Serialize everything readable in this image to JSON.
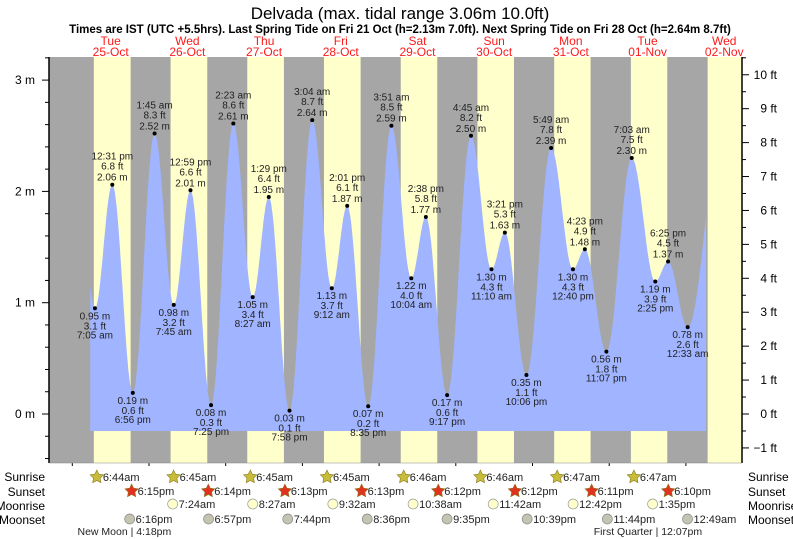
{
  "chart_data": {
    "type": "area",
    "title": "Delvada (max. tidal range 3.06m 10.0ft)",
    "subtitle": "Times are IST (UTC +5.5hrs). Last Spring Tide on Fri 21 Oct (h=2.13m 7.0ft). Next Spring Tide on Fri 28 Oct (h=2.64m 8.7ft)",
    "days": [
      {
        "dow": "Tue",
        "date": "25-Oct"
      },
      {
        "dow": "Wed",
        "date": "26-Oct"
      },
      {
        "dow": "Thu",
        "date": "27-Oct"
      },
      {
        "dow": "Fri",
        "date": "28-Oct"
      },
      {
        "dow": "Sat",
        "date": "29-Oct"
      },
      {
        "dow": "Sun",
        "date": "30-Oct"
      },
      {
        "dow": "Mon",
        "date": "31-Oct"
      },
      {
        "dow": "Tue",
        "date": "01-Nov"
      },
      {
        "dow": "Wed",
        "date": "02-Nov"
      }
    ],
    "ylim_m": [
      -0.45,
      3.2
    ],
    "left_axis": {
      "unit": "m",
      "ticks": [
        "3 m",
        "2 m",
        "1 m",
        "0 m"
      ],
      "values": [
        3,
        2,
        1,
        0
      ]
    },
    "right_axis": {
      "unit": "ft",
      "ticks": [
        "10 ft",
        "9 ft",
        "8 ft",
        "7 ft",
        "6 ft",
        "5 ft",
        "4 ft",
        "3 ft",
        "2 ft",
        "1 ft",
        "0 ft",
        "−1 ft"
      ],
      "values": [
        10,
        9,
        8,
        7,
        6,
        5,
        4,
        3,
        2,
        1,
        0,
        -1
      ]
    },
    "series_start": {
      "day": 0,
      "hour": 5.6,
      "m": 1.15
    },
    "series_end": {
      "day": 7,
      "hour": 6.3,
      "m": 1.78
    },
    "tides": [
      {
        "type": "low",
        "day": 0,
        "hour": 7.083,
        "time": "7:05 am",
        "m": "0.95 m",
        "ft": "3.1 ft",
        "value": 0.95
      },
      {
        "type": "high",
        "day": 0,
        "hour": 12.517,
        "time": "12:31 pm",
        "m": "2.06 m",
        "ft": "6.8 ft",
        "value": 2.06
      },
      {
        "type": "low",
        "day": 0,
        "hour": 18.933,
        "time": "6:56 pm",
        "m": "0.19 m",
        "ft": "0.6 ft",
        "value": 0.19
      },
      {
        "type": "high",
        "day": 1,
        "hour": 1.75,
        "time": "1:45 am",
        "m": "2.52 m",
        "ft": "8.3 ft",
        "value": 2.52
      },
      {
        "type": "low",
        "day": 1,
        "hour": 7.75,
        "time": "7:45 am",
        "m": "0.98 m",
        "ft": "3.2 ft",
        "value": 0.98
      },
      {
        "type": "high",
        "day": 1,
        "hour": 12.983,
        "time": "12:59 pm",
        "m": "2.01 m",
        "ft": "6.6 ft",
        "value": 2.01
      },
      {
        "type": "low",
        "day": 1,
        "hour": 19.417,
        "time": "7:25 pm",
        "m": "0.08 m",
        "ft": "0.3 ft",
        "value": 0.08
      },
      {
        "type": "high",
        "day": 2,
        "hour": 2.383,
        "time": "2:23 am",
        "m": "2.61 m",
        "ft": "8.6 ft",
        "value": 2.61
      },
      {
        "type": "low",
        "day": 2,
        "hour": 8.45,
        "time": "8:27 am",
        "m": "1.05 m",
        "ft": "3.4 ft",
        "value": 1.05
      },
      {
        "type": "high",
        "day": 2,
        "hour": 13.483,
        "time": "1:29 pm",
        "m": "1.95 m",
        "ft": "6.4 ft",
        "value": 1.95
      },
      {
        "type": "low",
        "day": 2,
        "hour": 19.967,
        "time": "7:58 pm",
        "m": "0.03 m",
        "ft": "0.1 ft",
        "value": 0.03
      },
      {
        "type": "high",
        "day": 3,
        "hour": 3.067,
        "time": "3:04 am",
        "m": "2.64 m",
        "ft": "8.7 ft",
        "value": 2.64
      },
      {
        "type": "low",
        "day": 3,
        "hour": 9.2,
        "time": "9:12 am",
        "m": "1.13 m",
        "ft": "3.7 ft",
        "value": 1.13
      },
      {
        "type": "high",
        "day": 3,
        "hour": 14.017,
        "time": "2:01 pm",
        "m": "1.87 m",
        "ft": "6.1 ft",
        "value": 1.87
      },
      {
        "type": "low",
        "day": 3,
        "hour": 20.583,
        "time": "8:35 pm",
        "m": "0.07 m",
        "ft": "0.2 ft",
        "value": 0.07
      },
      {
        "type": "high",
        "day": 4,
        "hour": 3.85,
        "time": "3:51 am",
        "m": "2.59 m",
        "ft": "8.5 ft",
        "value": 2.59
      },
      {
        "type": "low",
        "day": 4,
        "hour": 10.067,
        "time": "10:04 am",
        "m": "1.22 m",
        "ft": "4.0 ft",
        "value": 1.22
      },
      {
        "type": "high",
        "day": 4,
        "hour": 14.633,
        "time": "2:38 pm",
        "m": "1.77 m",
        "ft": "5.8 ft",
        "value": 1.77
      },
      {
        "type": "low",
        "day": 4,
        "hour": 21.283,
        "time": "9:17 pm",
        "m": "0.17 m",
        "ft": "0.6 ft",
        "value": 0.17
      },
      {
        "type": "high",
        "day": 5,
        "hour": 4.75,
        "time": "4:45 am",
        "m": "2.50 m",
        "ft": "8.2 ft",
        "value": 2.5
      },
      {
        "type": "low",
        "day": 5,
        "hour": 11.167,
        "time": "11:10 am",
        "m": "1.30 m",
        "ft": "4.3 ft",
        "value": 1.3
      },
      {
        "type": "high",
        "day": 5,
        "hour": 15.35,
        "time": "3:21 pm",
        "m": "1.63 m",
        "ft": "5.3 ft",
        "value": 1.63
      },
      {
        "type": "low",
        "day": 5,
        "hour": 22.1,
        "time": "10:06 pm",
        "m": "0.35 m",
        "ft": "1.1 ft",
        "value": 0.35
      },
      {
        "type": "high",
        "day": 6,
        "hour": 5.817,
        "time": "5:49 am",
        "m": "2.39 m",
        "ft": "7.8 ft",
        "value": 2.39
      },
      {
        "type": "low",
        "day": 6,
        "hour": 12.667,
        "time": "12:40 pm",
        "m": "1.30 m",
        "ft": "4.3 ft",
        "value": 1.3
      },
      {
        "type": "high",
        "day": 6,
        "hour": 16.383,
        "time": "4:23 pm",
        "m": "1.48 m",
        "ft": "4.9 ft",
        "value": 1.48
      },
      {
        "type": "low",
        "day": 6,
        "hour": 23.117,
        "time": "11:07 pm",
        "m": "0.56 m",
        "ft": "1.8 ft",
        "value": 0.56
      },
      {
        "type": "high",
        "day": 7,
        "hour": 7.05,
        "time": "7:03 am",
        "m": "2.30 m",
        "ft": "7.5 ft",
        "value": 2.3
      },
      {
        "type": "low",
        "day": 7,
        "hour": 14.417,
        "time": "2:25 pm",
        "m": "1.19 m",
        "ft": "3.9 ft",
        "value": 1.19
      },
      {
        "type": "high",
        "day": 7,
        "hour": 18.417,
        "time": "6:25 pm",
        "m": "1.37 m",
        "ft": "4.5 ft",
        "value": 1.37
      },
      {
        "type": "low",
        "day": 8,
        "hour": 0.55,
        "time": "12:33 am",
        "m": "0.78 m",
        "ft": "2.6 ft",
        "value": 0.78
      }
    ],
    "daylight": [
      {
        "rise": 6.733,
        "set": 18.25
      },
      {
        "rise": 6.75,
        "set": 18.233
      },
      {
        "rise": 6.75,
        "set": 18.217
      },
      {
        "rise": 6.75,
        "set": 18.217
      },
      {
        "rise": 6.767,
        "set": 18.2
      },
      {
        "rise": 6.767,
        "set": 18.2
      },
      {
        "rise": 6.783,
        "set": 18.183
      },
      {
        "rise": 6.783,
        "set": 18.167
      },
      {
        "rise": 6.8,
        "set": 24
      }
    ]
  },
  "legend": {
    "labels": {
      "sunrise": "Sunrise",
      "sunset": "Sunset",
      "moonrise": "Moonrise",
      "moonset": "Moonset"
    },
    "sunrise": [
      {
        "day": 0,
        "hour": 6.733,
        "text": "6:44am"
      },
      {
        "day": 1,
        "hour": 6.75,
        "text": "6:45am"
      },
      {
        "day": 2,
        "hour": 6.75,
        "text": "6:45am"
      },
      {
        "day": 3,
        "hour": 6.75,
        "text": "6:45am"
      },
      {
        "day": 4,
        "hour": 6.767,
        "text": "6:46am"
      },
      {
        "day": 5,
        "hour": 6.767,
        "text": "6:46am"
      },
      {
        "day": 6,
        "hour": 6.783,
        "text": "6:47am"
      },
      {
        "day": 7,
        "hour": 6.783,
        "text": "6:47am"
      }
    ],
    "sunset": [
      {
        "day": 0,
        "hour": 18.25,
        "text": "6:15pm"
      },
      {
        "day": 1,
        "hour": 18.233,
        "text": "6:14pm"
      },
      {
        "day": 2,
        "hour": 18.217,
        "text": "6:13pm"
      },
      {
        "day": 3,
        "hour": 18.217,
        "text": "6:13pm"
      },
      {
        "day": 4,
        "hour": 18.2,
        "text": "6:12pm"
      },
      {
        "day": 5,
        "hour": 18.2,
        "text": "6:12pm"
      },
      {
        "day": 6,
        "hour": 18.183,
        "text": "6:11pm"
      },
      {
        "day": 7,
        "hour": 18.167,
        "text": "6:10pm"
      }
    ],
    "moonrise": [
      {
        "day": 1,
        "hour": 7.4,
        "text": "7:24am"
      },
      {
        "day": 2,
        "hour": 8.45,
        "text": "8:27am"
      },
      {
        "day": 3,
        "hour": 9.533,
        "text": "9:32am"
      },
      {
        "day": 4,
        "hour": 10.633,
        "text": "10:38am"
      },
      {
        "day": 5,
        "hour": 11.7,
        "text": "11:42am"
      },
      {
        "day": 6,
        "hour": 12.7,
        "text": "12:42pm"
      },
      {
        "day": 7,
        "hour": 13.583,
        "text": "1:35pm"
      }
    ],
    "moonset": [
      {
        "day": 0,
        "hour": 18.267,
        "text": "6:16pm"
      },
      {
        "day": 1,
        "hour": 18.95,
        "text": "6:57pm"
      },
      {
        "day": 2,
        "hour": 19.733,
        "text": "7:44pm"
      },
      {
        "day": 3,
        "hour": 20.6,
        "text": "8:36pm"
      },
      {
        "day": 4,
        "hour": 21.583,
        "text": "9:35pm"
      },
      {
        "day": 5,
        "hour": 22.65,
        "text": "10:39pm"
      },
      {
        "day": 6,
        "hour": 23.733,
        "text": "11:44pm"
      },
      {
        "day": 8,
        "hour": 0.817,
        "text": "12:49am"
      }
    ],
    "moon_phases": [
      {
        "day": 0,
        "hour": 16.3,
        "text": "New Moon | 4:18pm"
      },
      {
        "day": 7,
        "hour": 12.117,
        "text": "First Quarter | 12:07pm"
      }
    ]
  },
  "colors": {
    "night": "#a6a6a6",
    "day": "#ffffcc",
    "water": "#a0b4ff",
    "day_label": "#ff1a1a",
    "sunrise_star": "#c8bd3a",
    "sunset_star": "#e0321e",
    "moonrise": "#ffffcc",
    "moonset": "#c4c4b0"
  }
}
